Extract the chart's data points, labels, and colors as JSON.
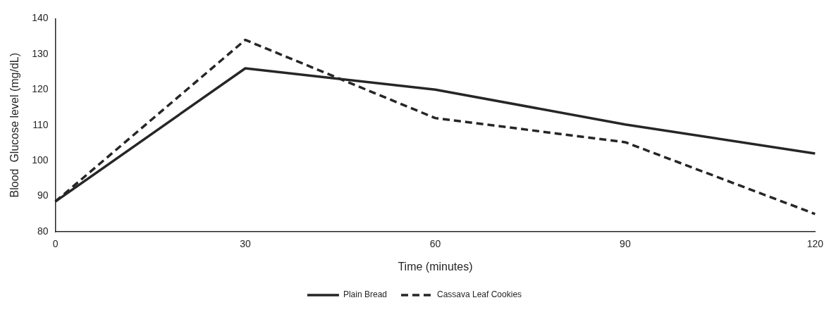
{
  "chart_data": {
    "type": "line",
    "xlabel": "Time (minutes)",
    "ylabel": "Blood  Glucose level (mg/dL)",
    "categories": [
      "0",
      "30",
      "60",
      "90",
      "120"
    ],
    "series": [
      {
        "name": "Plain Bread",
        "color": "#262626",
        "line_style": "solid",
        "values": [
          88.5,
          126,
          120,
          110.2,
          102
        ]
      },
      {
        "name": "Cassava Leaf Cookies",
        "color": "#262626",
        "line_style": "dashed",
        "values": [
          88.5,
          134,
          112,
          105.2,
          85
        ]
      }
    ],
    "ylim": [
      80,
      140
    ],
    "yticks": [
      80,
      90,
      100,
      110,
      120,
      130,
      140
    ],
    "grid": false,
    "legend": "bottom",
    "marker": "none"
  }
}
